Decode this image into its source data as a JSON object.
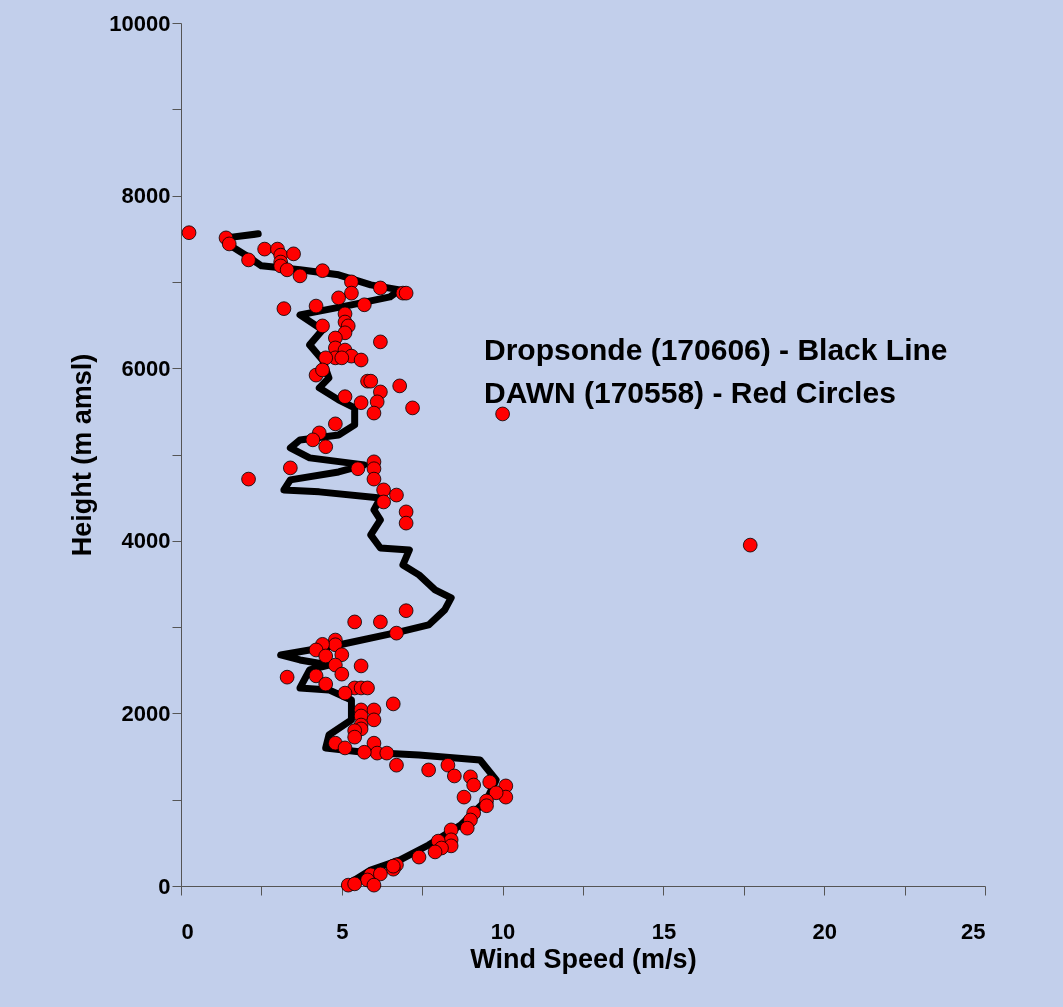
{
  "chart_data": {
    "type": "line",
    "xlabel": "Wind Speed (m/s)",
    "ylabel": "Height (m amsl)",
    "xlim": [
      0,
      25
    ],
    "ylim": [
      0,
      10000
    ],
    "xticks": [
      0,
      {
        "value": 2.5,
        "label": null
      },
      5,
      {
        "value": 7.5,
        "label": null
      },
      10,
      {
        "value": 12.5,
        "label": null
      },
      15,
      {
        "value": 17.5,
        "label": null
      },
      20,
      {
        "value": 22.5,
        "label": null
      },
      25
    ],
    "yticks": [
      0,
      {
        "value": 1000,
        "label": null
      },
      2000,
      {
        "value": 3000,
        "label": null
      },
      4000,
      {
        "value": 5000,
        "label": null
      },
      6000,
      {
        "value": 7000,
        "label": null
      },
      8000,
      {
        "value": 9000,
        "label": null
      },
      10000
    ],
    "grid": false,
    "annotations": [
      "Dropsonde (170606) - Black Line",
      "DAWN (170558) - Red Circles"
    ],
    "series": [
      {
        "type": "line",
        "color": "#000000",
        "marker": "none",
        "line_style": "solid",
        "x": [
          5.1,
          5.9,
          6.8,
          7.7,
          8.7,
          9.5,
          9.8,
          9.3,
          7.4,
          5.6,
          4.5,
          4.6,
          5.3,
          5.3,
          4.6,
          3.7,
          4.0,
          4.6,
          3.7,
          3.1,
          4.9,
          6.8,
          7.7,
          8.2,
          8.4,
          7.9,
          7.4,
          6.9,
          7.1,
          6.2,
          5.9,
          6.2,
          6.0,
          6.2,
          4.3,
          3.2,
          3.4,
          4.9,
          5.7,
          4.0,
          3.4,
          3.7,
          4.9,
          5.4,
          5.4,
          4.9,
          4.3,
          4.6,
          4.4,
          4.0,
          4.4,
          3.7,
          5.3,
          6.5,
          6.8,
          5.9,
          4.9,
          3.7,
          2.5,
          2.0,
          1.5,
          1.4,
          2.4
        ],
        "values": [
          0,
          185,
          300,
          475,
          707,
          997,
          1229,
          1460,
          1518,
          1553,
          1600,
          1750,
          1924,
          2156,
          2272,
          2295,
          2504,
          2561,
          2619,
          2677,
          2793,
          2944,
          3025,
          3199,
          3338,
          3431,
          3605,
          3720,
          3894,
          3917,
          4068,
          4242,
          4358,
          4497,
          4567,
          4590,
          4706,
          4798,
          4880,
          4961,
          5076,
          5169,
          5227,
          5343,
          5540,
          5633,
          5772,
          5888,
          6096,
          6270,
          6444,
          6618,
          6734,
          6826,
          6908,
          6966,
          7082,
          7140,
          7186,
          7313,
          7429,
          7510,
          7557
        ]
      },
      {
        "type": "scatter",
        "color": "#ff0000",
        "marker": "circle",
        "x": [
          0.25,
          1.4,
          1.5,
          2.1,
          2.6,
          3.0,
          3.1,
          3.1,
          3.5,
          3.1,
          3.3,
          3.7,
          4.4,
          5.3,
          5.3,
          6.2,
          6.9,
          7.0,
          4.9,
          5.7,
          4.2,
          3.2,
          5.1,
          5.1,
          4.4,
          5.2,
          5.1,
          6.2,
          4.8,
          4.8,
          5.1,
          5.3,
          4.8,
          5.0,
          5.6,
          4.5,
          4.2,
          4.4,
          5.8,
          5.9,
          6.8,
          6.2,
          5.6,
          6.1,
          5.1,
          7.2,
          6.0,
          10.0,
          4.8,
          4.3,
          4.1,
          4.5,
          6.0,
          6.0,
          5.5,
          3.4,
          2.1,
          6.0,
          6.3,
          6.7,
          6.3,
          7.0,
          7.0,
          17.7,
          7.0,
          6.2,
          5.4,
          6.7,
          4.8,
          4.8,
          4.4,
          4.2,
          4.5,
          5.0,
          4.8,
          5.6,
          5.0,
          3.3,
          4.2,
          4.5,
          5.4,
          5.6,
          5.8,
          5.1,
          6.6,
          5.6,
          6.0,
          5.6,
          6.0,
          5.6,
          5.6,
          5.4,
          5.4,
          4.8,
          6.0,
          5.1,
          6.1,
          6.4,
          5.7,
          6.7,
          8.3,
          7.7,
          8.5,
          9.0,
          9.6,
          9.1,
          10.1,
          8.8,
          10.1,
          9.8,
          9.5,
          9.5,
          9.1,
          9.0,
          8.9,
          8.4,
          8.4,
          8.4,
          8.0,
          8.1,
          7.9,
          7.4,
          6.7,
          6.6,
          6.6,
          5.9,
          6.2,
          5.8,
          5.2,
          5.4,
          6.0
        ],
        "values": [
          7570,
          7510,
          7440,
          7255,
          7380,
          7380,
          7310,
          7230,
          7325,
          7185,
          7140,
          7070,
          7130,
          7000,
          6870,
          6930,
          6870,
          6870,
          6815,
          6735,
          6720,
          6690,
          6630,
          6535,
          6490,
          6490,
          6410,
          6305,
          6350,
          6235,
          6210,
          6140,
          6120,
          6120,
          6095,
          6120,
          5920,
          5980,
          5850,
          5850,
          5795,
          5725,
          5600,
          5610,
          5670,
          5540,
          5480,
          5470,
          5355,
          5250,
          5170,
          5090,
          4915,
          4835,
          4835,
          4845,
          4715,
          4715,
          4590,
          4530,
          4450,
          4335,
          4205,
          3950,
          3190,
          3060,
          3060,
          2930,
          2850,
          2795,
          2800,
          2735,
          2665,
          2680,
          2560,
          2550,
          2455,
          2420,
          2435,
          2340,
          2295,
          2295,
          2295,
          2235,
          2110,
          2040,
          2040,
          1970,
          1925,
          1865,
          1820,
          1800,
          1725,
          1655,
          1655,
          1600,
          1540,
          1540,
          1550,
          1400,
          1400,
          1345,
          1275,
          1265,
          1205,
          1170,
          1160,
          1030,
          1030,
          1080,
          985,
          930,
          845,
          765,
          670,
          650,
          535,
          465,
          520,
          440,
          395,
          335,
          245,
          195,
          230,
          130,
          140,
          70,
          10,
          25,
          10
        ]
      }
    ]
  }
}
